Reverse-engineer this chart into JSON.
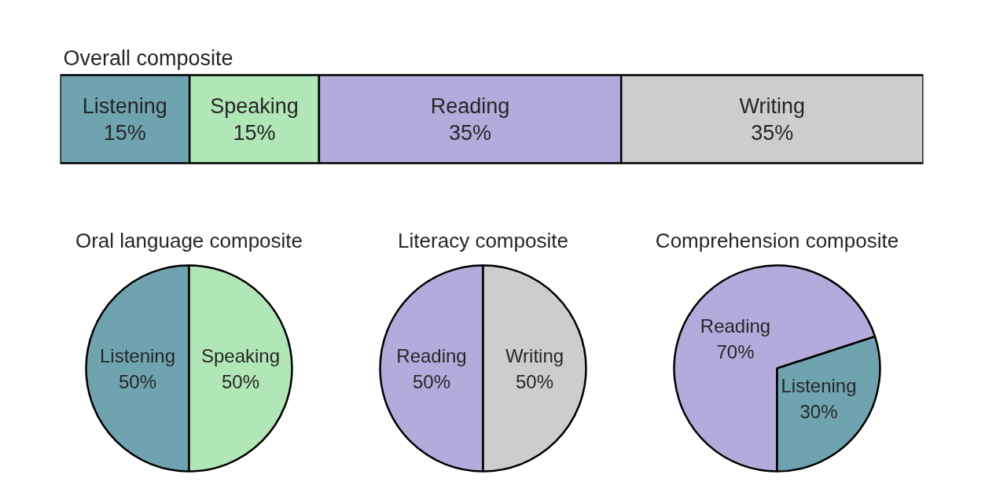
{
  "chart_data": [
    {
      "type": "bar",
      "title": "Overall composite",
      "categories": [
        null
      ],
      "stacked": true,
      "orientation": "horizontal",
      "tick_labels": false,
      "series": [
        {
          "name": "Listening",
          "color": "#6fa3b0",
          "values": [
            15
          ],
          "value_labels": [
            "15%"
          ]
        },
        {
          "name": "Speaking",
          "color": "#b1e6b6",
          "values": [
            15
          ],
          "value_labels": [
            "15%"
          ]
        },
        {
          "name": "Reading",
          "color": "#b4aadc",
          "values": [
            35
          ],
          "value_labels": [
            "35%"
          ]
        },
        {
          "name": "Writing",
          "color": "#cdcdcd",
          "values": [
            35
          ],
          "value_labels": [
            "35%"
          ]
        }
      ]
    },
    {
      "type": "pie",
      "title": "Oral language composite",
      "categories": [
        "Listening",
        "Speaking"
      ],
      "values": [
        50,
        50
      ],
      "colors": [
        "#6fa3b0",
        "#b1e6b6"
      ],
      "value_labels": [
        "50%",
        "50%"
      ]
    },
    {
      "type": "pie",
      "title": "Literacy composite",
      "categories": [
        "Reading",
        "Writing"
      ],
      "values": [
        50,
        50
      ],
      "colors": [
        "#b4aadc",
        "#cdcdcd"
      ],
      "value_labels": [
        "50%",
        "50%"
      ]
    },
    {
      "type": "pie",
      "title": "Comprehension composite",
      "categories": [
        "Reading",
        "Listening"
      ],
      "values": [
        70,
        30
      ],
      "colors": [
        "#b4aadc",
        "#6fa3b0"
      ],
      "value_labels": [
        "70%",
        "30%"
      ]
    }
  ]
}
